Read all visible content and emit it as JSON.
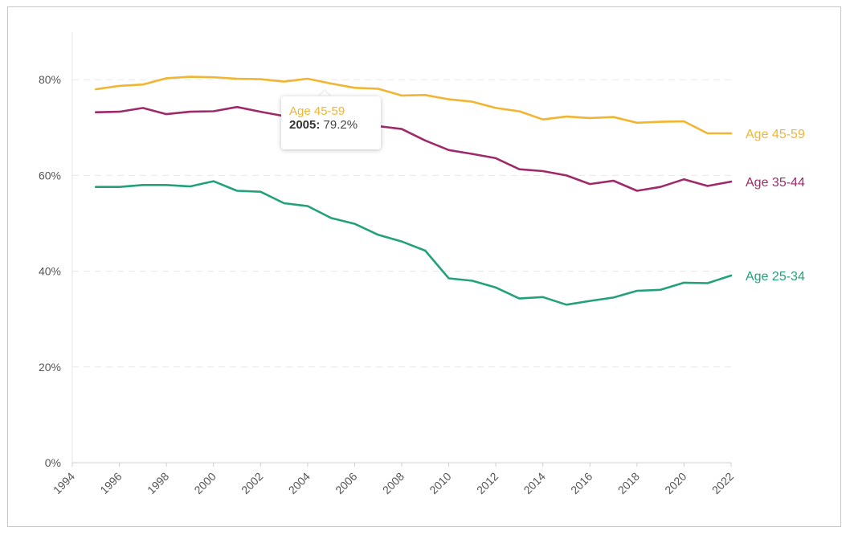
{
  "chart_data": {
    "type": "line",
    "x": [
      1995,
      1996,
      1997,
      1998,
      1999,
      2000,
      2001,
      2002,
      2003,
      2004,
      2005,
      2006,
      2007,
      2008,
      2009,
      2010,
      2011,
      2012,
      2013,
      2014,
      2015,
      2016,
      2017,
      2018,
      2019,
      2020,
      2021,
      2022
    ],
    "series": [
      {
        "name": "Age 45-59",
        "color": "#f2b531",
        "values": [
          78.0,
          78.7,
          79.0,
          80.3,
          80.6,
          80.5,
          80.2,
          80.1,
          79.6,
          80.2,
          79.2,
          78.3,
          78.1,
          76.7,
          76.8,
          75.9,
          75.4,
          74.1,
          73.4,
          71.7,
          72.3,
          72.0,
          72.2,
          71.0,
          71.2,
          71.3,
          68.8,
          68.8
        ]
      },
      {
        "name": "Age 35-44",
        "color": "#9e2a6a",
        "values": [
          73.2,
          73.3,
          74.1,
          72.8,
          73.3,
          73.4,
          74.3,
          73.3,
          72.4,
          71.4,
          71.0,
          70.7,
          70.3,
          69.7,
          67.3,
          65.3,
          64.5,
          63.6,
          61.3,
          60.9,
          60.0,
          58.2,
          58.9,
          56.8,
          57.6,
          59.2,
          57.8,
          58.7
        ]
      },
      {
        "name": "Age 25-34",
        "color": "#22a17b",
        "values": [
          57.6,
          57.6,
          58.0,
          58.0,
          57.7,
          58.8,
          56.8,
          56.6,
          54.2,
          53.6,
          51.1,
          49.9,
          47.6,
          46.2,
          44.3,
          38.5,
          38.0,
          36.6,
          34.3,
          34.6,
          33.0,
          33.8,
          34.5,
          35.9,
          36.1,
          37.6,
          37.5,
          39.1
        ]
      }
    ],
    "y_ticks": [
      "0%",
      "20%",
      "40%",
      "60%",
      "80%"
    ],
    "x_ticks": [
      "1994",
      "1996",
      "1998",
      "2000",
      "2002",
      "2004",
      "2006",
      "2008",
      "2010",
      "2012",
      "2014",
      "2016",
      "2018",
      "2020",
      "2022"
    ],
    "xlim": [
      1994,
      2022
    ],
    "ylim": [
      0,
      90
    ],
    "grid": true,
    "end_labels": [
      "Age 45-59",
      "Age 35-44",
      "Age 25-34"
    ],
    "tooltip": {
      "series": "Age 45-59",
      "year": "2005:",
      "value": "79.2%"
    },
    "title": "",
    "xlabel": "",
    "ylabel": ""
  }
}
